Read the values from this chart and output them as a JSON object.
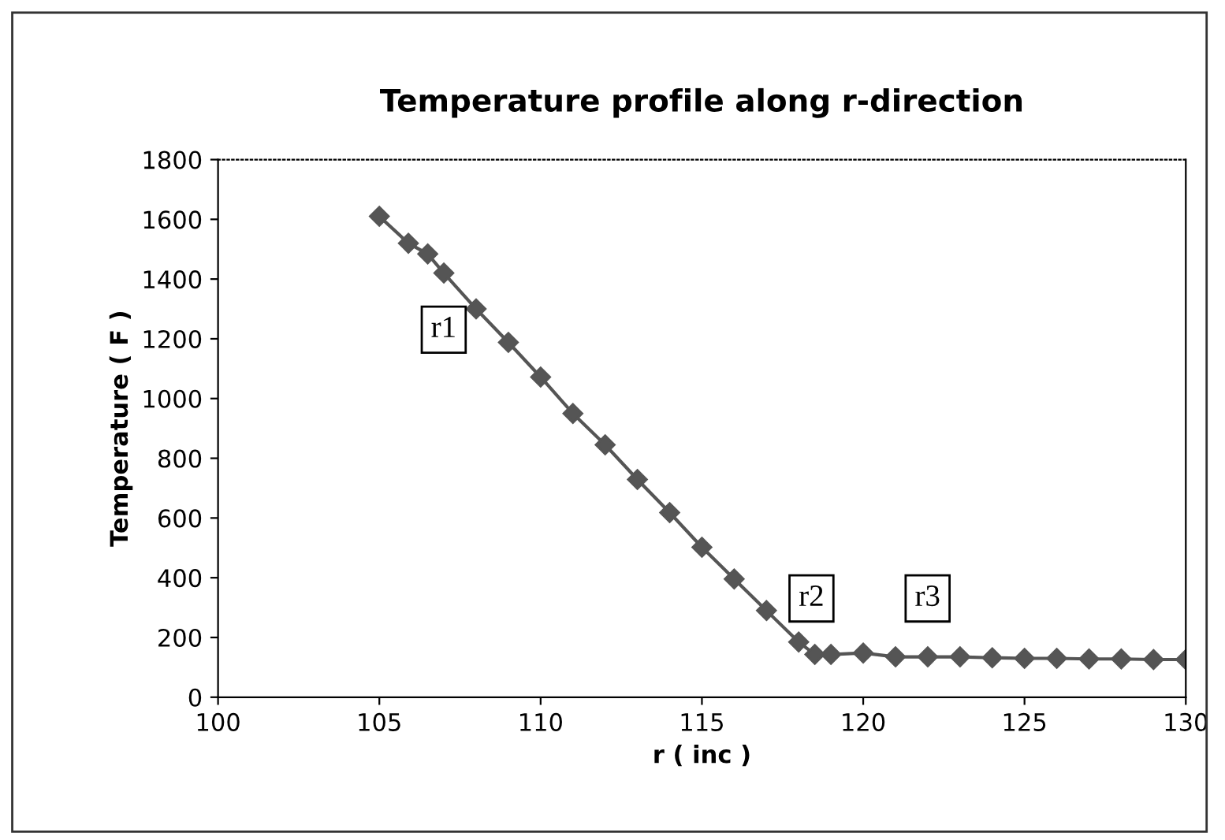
{
  "chart_data": {
    "type": "line",
    "title": "Temperature profile along r-direction",
    "xlabel": "r ( inc )",
    "ylabel": "Temperature ( F )",
    "x": [
      105,
      105.9,
      106.5,
      107,
      108,
      109,
      110,
      111,
      112,
      113,
      114,
      115,
      116,
      117,
      118,
      118.5,
      119,
      120,
      121,
      122,
      123,
      124,
      125,
      126,
      127,
      128,
      129,
      130
    ],
    "series": [
      {
        "color": "#555555",
        "values": [
          1610,
          1520,
          1484,
          1420,
          1300,
          1188,
          1072,
          950,
          845,
          729,
          618,
          502,
          396,
          290,
          185,
          143,
          143,
          148,
          135,
          135,
          135,
          132,
          130,
          130,
          128,
          128,
          126,
          126
        ]
      }
    ],
    "xlim": [
      100,
      130
    ],
    "xticks": [
      100,
      105,
      110,
      115,
      120,
      125,
      130
    ],
    "ylim": [
      0,
      1800
    ],
    "yticks": [
      0,
      200,
      400,
      600,
      800,
      1000,
      1200,
      1400,
      1600,
      1800
    ],
    "annotations": [
      "r1",
      "r2",
      "r3"
    ],
    "marker": "diamond",
    "line_style": "solid",
    "grid": false,
    "legend": false
  }
}
